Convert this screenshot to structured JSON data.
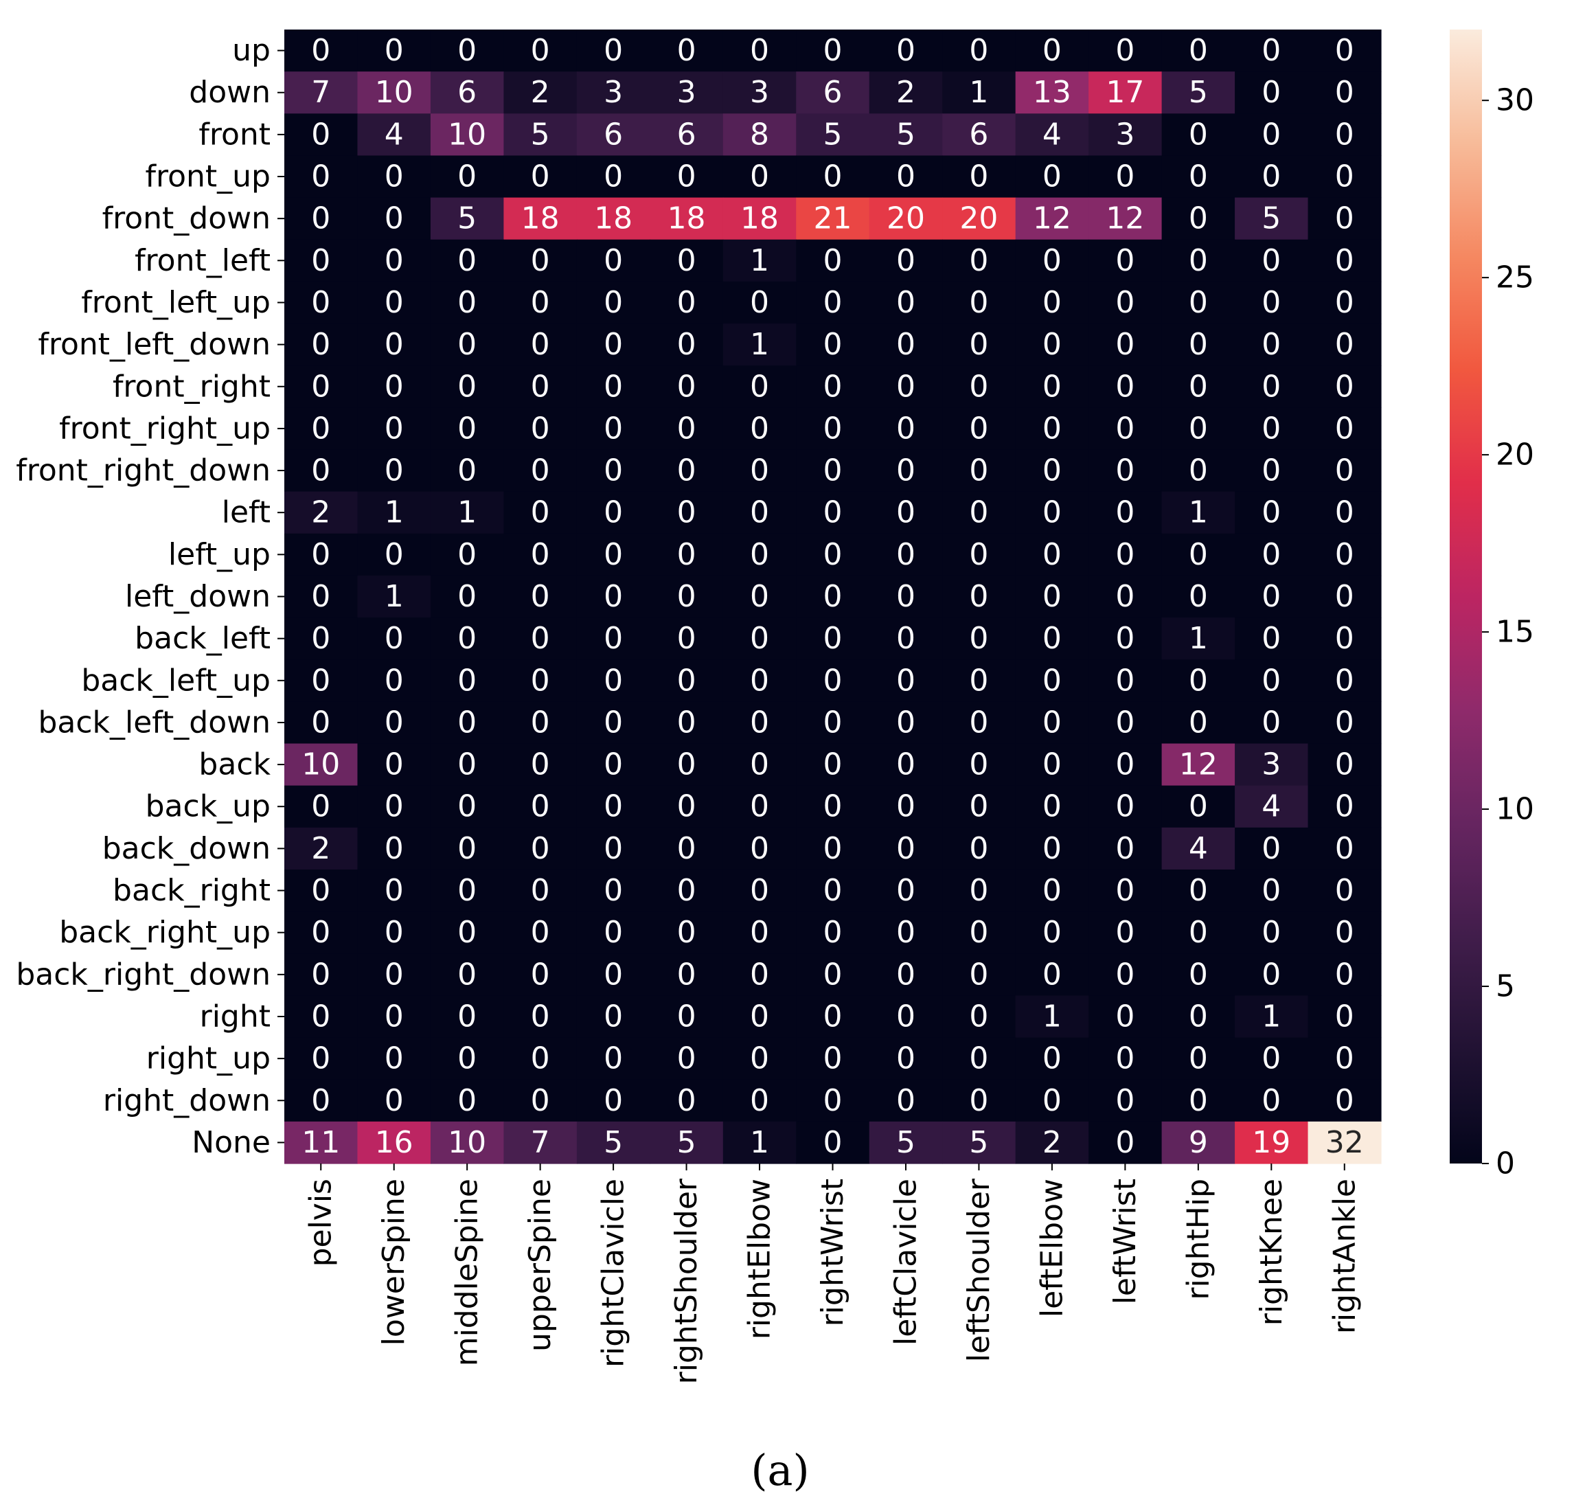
{
  "chart_data": {
    "type": "heatmap",
    "caption": "(a)",
    "colormap": "rocket",
    "x_labels": [
      "pelvis",
      "lowerSpine",
      "middleSpine",
      "upperSpine",
      "rightClavicle",
      "rightShoulder",
      "rightElbow",
      "rightWrist",
      "leftClavicle",
      "leftShoulder",
      "leftElbow",
      "leftWrist",
      "rightHip",
      "rightKnee",
      "rightAnkle"
    ],
    "y_labels": [
      "up",
      "down",
      "front",
      "front_up",
      "front_down",
      "front_left",
      "front_left_up",
      "front_left_down",
      "front_right",
      "front_right_up",
      "front_right_down",
      "left",
      "left_up",
      "left_down",
      "back_left",
      "back_left_up",
      "back_left_down",
      "back",
      "back_up",
      "back_down",
      "back_right",
      "back_right_up",
      "back_right_down",
      "right",
      "right_up",
      "right_down",
      "None"
    ],
    "values": [
      [
        0,
        0,
        0,
        0,
        0,
        0,
        0,
        0,
        0,
        0,
        0,
        0,
        0,
        0,
        0
      ],
      [
        7,
        10,
        6,
        2,
        3,
        3,
        3,
        6,
        2,
        1,
        13,
        17,
        5,
        0,
        0
      ],
      [
        0,
        4,
        10,
        5,
        6,
        6,
        8,
        5,
        5,
        6,
        4,
        3,
        0,
        0,
        0
      ],
      [
        0,
        0,
        0,
        0,
        0,
        0,
        0,
        0,
        0,
        0,
        0,
        0,
        0,
        0,
        0
      ],
      [
        0,
        0,
        5,
        18,
        18,
        18,
        18,
        21,
        20,
        20,
        12,
        12,
        0,
        5,
        0
      ],
      [
        0,
        0,
        0,
        0,
        0,
        0,
        1,
        0,
        0,
        0,
        0,
        0,
        0,
        0,
        0
      ],
      [
        0,
        0,
        0,
        0,
        0,
        0,
        0,
        0,
        0,
        0,
        0,
        0,
        0,
        0,
        0
      ],
      [
        0,
        0,
        0,
        0,
        0,
        0,
        1,
        0,
        0,
        0,
        0,
        0,
        0,
        0,
        0
      ],
      [
        0,
        0,
        0,
        0,
        0,
        0,
        0,
        0,
        0,
        0,
        0,
        0,
        0,
        0,
        0
      ],
      [
        0,
        0,
        0,
        0,
        0,
        0,
        0,
        0,
        0,
        0,
        0,
        0,
        0,
        0,
        0
      ],
      [
        0,
        0,
        0,
        0,
        0,
        0,
        0,
        0,
        0,
        0,
        0,
        0,
        0,
        0,
        0
      ],
      [
        2,
        1,
        1,
        0,
        0,
        0,
        0,
        0,
        0,
        0,
        0,
        0,
        1,
        0,
        0
      ],
      [
        0,
        0,
        0,
        0,
        0,
        0,
        0,
        0,
        0,
        0,
        0,
        0,
        0,
        0,
        0
      ],
      [
        0,
        1,
        0,
        0,
        0,
        0,
        0,
        0,
        0,
        0,
        0,
        0,
        0,
        0,
        0
      ],
      [
        0,
        0,
        0,
        0,
        0,
        0,
        0,
        0,
        0,
        0,
        0,
        0,
        1,
        0,
        0
      ],
      [
        0,
        0,
        0,
        0,
        0,
        0,
        0,
        0,
        0,
        0,
        0,
        0,
        0,
        0,
        0
      ],
      [
        0,
        0,
        0,
        0,
        0,
        0,
        0,
        0,
        0,
        0,
        0,
        0,
        0,
        0,
        0
      ],
      [
        10,
        0,
        0,
        0,
        0,
        0,
        0,
        0,
        0,
        0,
        0,
        0,
        12,
        3,
        0
      ],
      [
        0,
        0,
        0,
        0,
        0,
        0,
        0,
        0,
        0,
        0,
        0,
        0,
        0,
        4,
        0
      ],
      [
        2,
        0,
        0,
        0,
        0,
        0,
        0,
        0,
        0,
        0,
        0,
        0,
        4,
        0,
        0
      ],
      [
        0,
        0,
        0,
        0,
        0,
        0,
        0,
        0,
        0,
        0,
        0,
        0,
        0,
        0,
        0
      ],
      [
        0,
        0,
        0,
        0,
        0,
        0,
        0,
        0,
        0,
        0,
        0,
        0,
        0,
        0,
        0
      ],
      [
        0,
        0,
        0,
        0,
        0,
        0,
        0,
        0,
        0,
        0,
        0,
        0,
        0,
        0,
        0
      ],
      [
        0,
        0,
        0,
        0,
        0,
        0,
        0,
        0,
        0,
        0,
        1,
        0,
        0,
        1,
        0
      ],
      [
        0,
        0,
        0,
        0,
        0,
        0,
        0,
        0,
        0,
        0,
        0,
        0,
        0,
        0,
        0
      ],
      [
        0,
        0,
        0,
        0,
        0,
        0,
        0,
        0,
        0,
        0,
        0,
        0,
        0,
        0,
        0
      ],
      [
        11,
        16,
        10,
        7,
        5,
        5,
        1,
        0,
        5,
        5,
        2,
        0,
        9,
        19,
        32
      ]
    ],
    "vmin": 0,
    "vmax": 32,
    "colorbar": {
      "ticks": [
        0,
        5,
        10,
        15,
        20,
        25,
        30
      ],
      "tick_labels": [
        "0",
        "5",
        "10",
        "15",
        "20",
        "25",
        "30"
      ]
    }
  }
}
